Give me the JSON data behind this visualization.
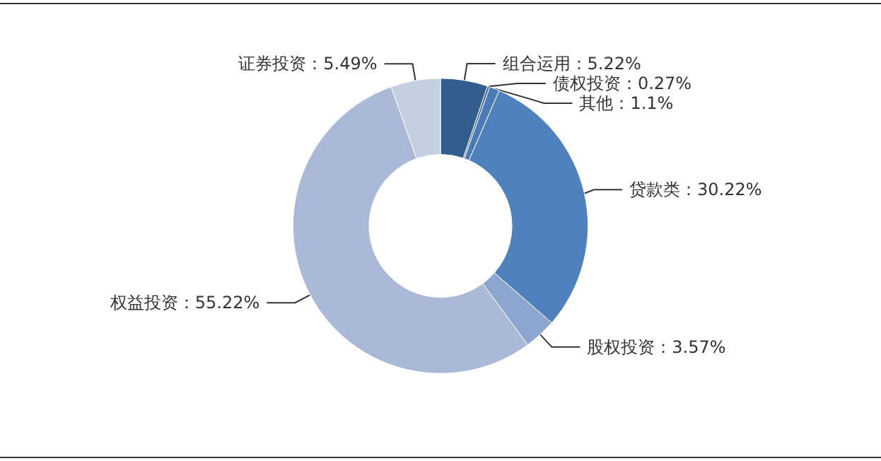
{
  "chart_data": {
    "type": "donut",
    "categories": [
      "组合运用",
      "债权投资",
      "其他",
      "贷款类",
      "股权投资",
      "权益投资",
      "证券投资"
    ],
    "values": [
      5.22,
      0.27,
      1.1,
      30.22,
      3.57,
      55.22,
      5.49
    ],
    "value_labels": [
      "5.22%",
      "0.27%",
      "1.1%",
      "30.22%",
      "3.57%",
      "55.22%",
      "5.49%"
    ],
    "colors": [
      "#335d8c",
      "#3f6ea8",
      "#4a7bb8",
      "#4f81bd",
      "#8ca6cf",
      "#aab9d8",
      "#c4cfe2"
    ],
    "legend": false
  }
}
